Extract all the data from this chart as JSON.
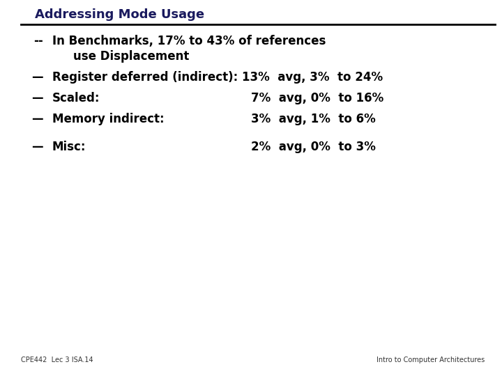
{
  "title": "Addressing Mode Usage",
  "background_color": "#ffffff",
  "title_color": "#1a1a5e",
  "title_underline_color": "#000000",
  "bullet1": "--",
  "text1a": "In Benchmarks, 17% to 43% of references",
  "text1b": "use Displacement",
  "bullet2": "—",
  "text2": "Register deferred (indirect): 13%  avg, 3%  to 24%",
  "bullet3": "—",
  "label3": "Scaled:",
  "value3": "7%  avg, 0%  to 16%",
  "bullet4": "—",
  "label4": "Memory indirect:",
  "value4": "3%  avg, 1%  to 6%",
  "bullet5": "—",
  "label5": "Misc:",
  "value5": "2%  avg, 0%  to 3%",
  "footer_left": "CPE442  Lec 3 ISA.14",
  "footer_right": "Intro to Computer Architectures",
  "title_fontsize": 13,
  "body_fontsize": 12,
  "footer_fontsize": 7
}
